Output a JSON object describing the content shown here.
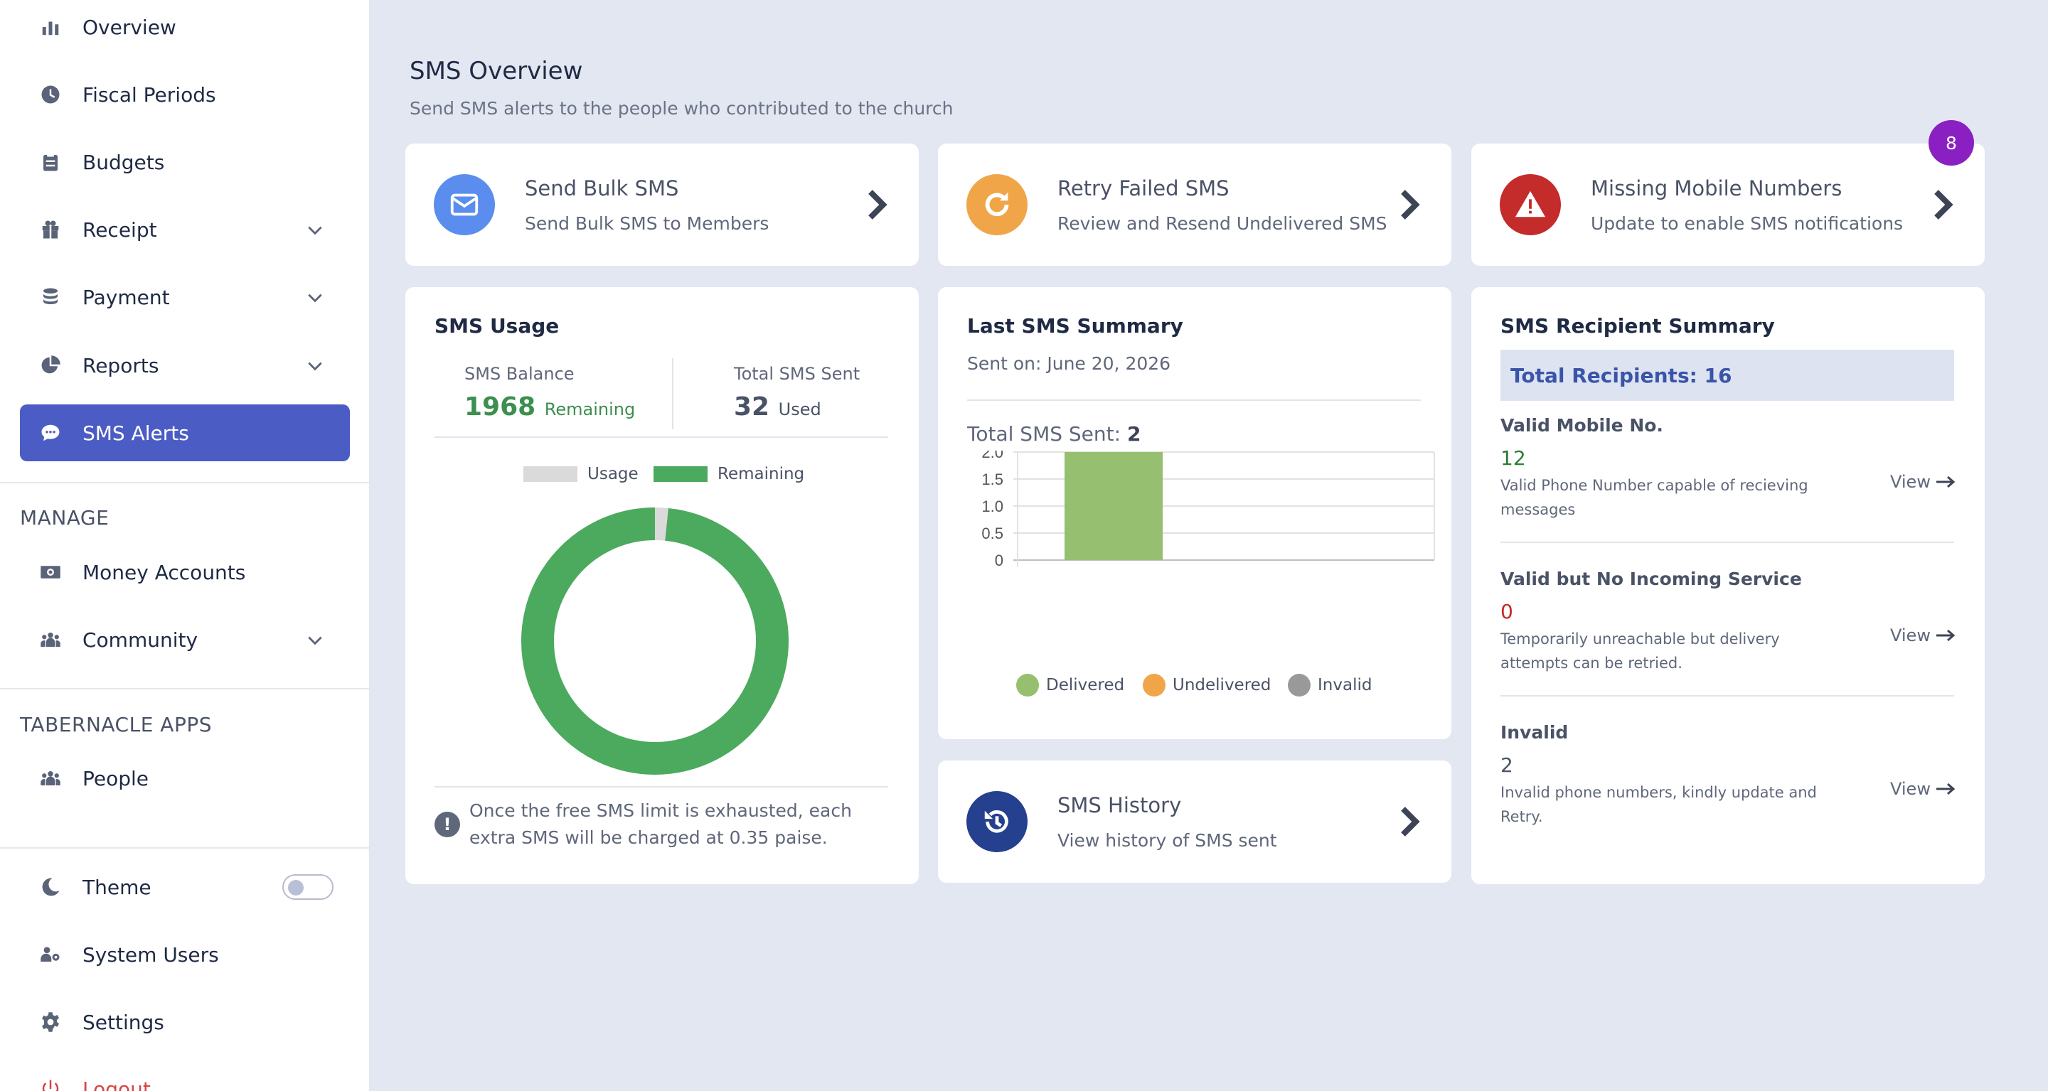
{
  "sidebar": {
    "items": [
      {
        "label": "Overview",
        "icon": "bar-chart-icon"
      },
      {
        "label": "Fiscal Periods",
        "icon": "clock-icon"
      },
      {
        "label": "Budgets",
        "icon": "clipboard-icon"
      },
      {
        "label": "Receipt",
        "icon": "gift-icon"
      },
      {
        "label": "Payment",
        "icon": "coins-icon"
      },
      {
        "label": "Reports",
        "icon": "pie-chart-icon"
      },
      {
        "label": "SMS Alerts",
        "icon": "comment-icon"
      }
    ],
    "manage_title": "MANAGE",
    "manage_items": [
      {
        "label": "Money Accounts",
        "icon": "money-icon"
      },
      {
        "label": "Community",
        "icon": "people-group-icon"
      }
    ],
    "apps_title": "TABERNACLE APPS",
    "apps_items": [
      {
        "label": "People",
        "icon": "people-group-icon"
      }
    ],
    "bottom_items": [
      {
        "label": "Theme",
        "icon": "moon-icon"
      },
      {
        "label": "System Users",
        "icon": "users-gear-icon"
      },
      {
        "label": "Settings",
        "icon": "gear-icon"
      },
      {
        "label": "Logout",
        "icon": "power-icon"
      }
    ],
    "active_color": "#4b5cc4"
  },
  "header": {
    "title": "SMS Overview",
    "subtitle": "Send SMS alerts to the people who contributed to the church"
  },
  "actions": [
    {
      "title": "Send Bulk SMS",
      "desc": "Send Bulk SMS to Members",
      "icon": "envelope-icon",
      "color": "#5b8def"
    },
    {
      "title": "Retry Failed SMS",
      "desc": "Review and Resend Undelivered SMS",
      "icon": "refresh-icon",
      "color": "#f0a648"
    },
    {
      "title": "Missing Mobile Numbers",
      "desc": "Update to enable SMS notifications",
      "icon": "warning-icon",
      "color": "#c42b2b",
      "badge": "8"
    }
  ],
  "usage": {
    "title": "SMS Usage",
    "balance_label": "SMS Balance",
    "balance_value": "1968",
    "balance_unit": "Remaining",
    "sent_label": "Total SMS Sent",
    "sent_value": "32",
    "sent_unit": "Used",
    "note": "Once the free SMS limit is exhausted, each extra SMS will be charged at 0.35 paise."
  },
  "last_summary": {
    "title": "Last SMS Summary",
    "sent_on": "Sent on: June 20, 2026",
    "total_label": "Total SMS Sent:",
    "total_value": "2"
  },
  "history": {
    "title": "SMS History",
    "desc": "View history of SMS sent",
    "icon": "history-icon",
    "color": "#24408e"
  },
  "recipients": {
    "title": "SMS Recipient Summary",
    "total": "Total Recipients: 16",
    "view_label": "View",
    "groups": [
      {
        "label": "Valid Mobile No.",
        "count": "12",
        "desc": "Valid Phone Number capable of recieving messages",
        "color": "#2e7d32"
      },
      {
        "label": "Valid but No Incoming Service",
        "count": "0",
        "desc": "Temporarily unreachable but delivery attempts can be retried.",
        "color": "#c62828"
      },
      {
        "label": "Invalid",
        "count": "2",
        "desc": "Invalid phone numbers, kindly update and Retry.",
        "color": "#4a5266"
      }
    ]
  },
  "chart_data": [
    {
      "type": "pie",
      "variant": "doughnut",
      "categories": [
        "Usage",
        "Remaining"
      ],
      "values": [
        32,
        1968
      ],
      "colors": [
        "#dadada",
        "#4caa5e"
      ],
      "legend": "top"
    },
    {
      "type": "bar",
      "categories": [
        "Delivered",
        "Undelivered",
        "Invalid"
      ],
      "values": [
        2,
        0,
        0
      ],
      "colors": [
        "#96bf6f",
        "#f0a648",
        "#999999"
      ],
      "ylim": [
        0,
        2
      ],
      "yticks": [
        "0",
        "0.5",
        "1.0",
        "1.5",
        "2.0"
      ],
      "grid": true,
      "legend": "bottom"
    }
  ]
}
